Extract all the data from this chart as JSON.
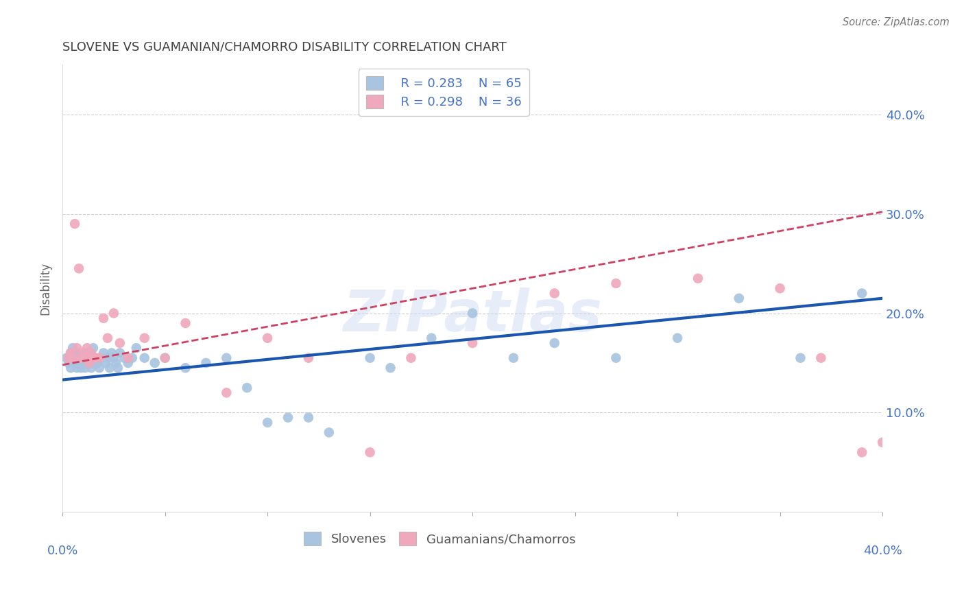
{
  "title": "SLOVENE VS GUAMANIAN/CHAMORRO DISABILITY CORRELATION CHART",
  "source": "Source: ZipAtlas.com",
  "ylabel": "Disability",
  "xlim": [
    0.0,
    0.4
  ],
  "ylim": [
    0.0,
    0.45
  ],
  "ytick_values": [
    0.0,
    0.1,
    0.2,
    0.3,
    0.4
  ],
  "legend_r_slovene": "R = 0.283",
  "legend_n_slovene": "N = 65",
  "legend_r_guam": "R = 0.298",
  "legend_n_guam": "N = 36",
  "slovene_color": "#a8c4e0",
  "guam_color": "#f0a8bc",
  "trend_slovene_color": "#1a56b0",
  "trend_guam_color": "#d04060",
  "background_color": "#ffffff",
  "grid_color": "#cccccc",
  "title_color": "#404040",
  "axis_label_color": "#4472c4",
  "watermark": "ZIPatlas",
  "slovene_x": [
    0.002,
    0.003,
    0.004,
    0.004,
    0.005,
    0.005,
    0.006,
    0.006,
    0.007,
    0.007,
    0.008,
    0.008,
    0.009,
    0.009,
    0.01,
    0.01,
    0.011,
    0.011,
    0.012,
    0.012,
    0.013,
    0.013,
    0.014,
    0.014,
    0.015,
    0.015,
    0.016,
    0.017,
    0.018,
    0.019,
    0.02,
    0.021,
    0.022,
    0.023,
    0.024,
    0.025,
    0.026,
    0.027,
    0.028,
    0.03,
    0.032,
    0.034,
    0.036,
    0.04,
    0.045,
    0.05,
    0.06,
    0.07,
    0.08,
    0.09,
    0.1,
    0.11,
    0.12,
    0.13,
    0.15,
    0.16,
    0.18,
    0.2,
    0.22,
    0.24,
    0.27,
    0.3,
    0.33,
    0.36,
    0.39
  ],
  "slovene_y": [
    0.155,
    0.15,
    0.16,
    0.145,
    0.155,
    0.165,
    0.15,
    0.16,
    0.145,
    0.155,
    0.16,
    0.15,
    0.155,
    0.145,
    0.16,
    0.15,
    0.155,
    0.145,
    0.16,
    0.15,
    0.155,
    0.16,
    0.145,
    0.155,
    0.15,
    0.165,
    0.155,
    0.15,
    0.145,
    0.155,
    0.16,
    0.15,
    0.155,
    0.145,
    0.16,
    0.155,
    0.15,
    0.145,
    0.16,
    0.155,
    0.15,
    0.155,
    0.165,
    0.155,
    0.15,
    0.155,
    0.145,
    0.15,
    0.155,
    0.125,
    0.09,
    0.095,
    0.095,
    0.08,
    0.155,
    0.145,
    0.175,
    0.2,
    0.155,
    0.17,
    0.155,
    0.175,
    0.215,
    0.155,
    0.22
  ],
  "guam_x": [
    0.003,
    0.004,
    0.005,
    0.006,
    0.007,
    0.008,
    0.009,
    0.01,
    0.011,
    0.012,
    0.013,
    0.014,
    0.015,
    0.016,
    0.018,
    0.02,
    0.022,
    0.025,
    0.028,
    0.032,
    0.04,
    0.05,
    0.06,
    0.08,
    0.1,
    0.12,
    0.15,
    0.17,
    0.2,
    0.24,
    0.27,
    0.31,
    0.35,
    0.37,
    0.39,
    0.4
  ],
  "guam_y": [
    0.155,
    0.16,
    0.155,
    0.29,
    0.165,
    0.245,
    0.155,
    0.16,
    0.155,
    0.165,
    0.15,
    0.16,
    0.155,
    0.155,
    0.155,
    0.195,
    0.175,
    0.2,
    0.17,
    0.155,
    0.175,
    0.155,
    0.19,
    0.12,
    0.175,
    0.155,
    0.06,
    0.155,
    0.17,
    0.22,
    0.23,
    0.235,
    0.225,
    0.155,
    0.06,
    0.07
  ],
  "trend_slovene_start_y": 0.133,
  "trend_slovene_end_y": 0.215,
  "trend_guam_start_y": 0.148,
  "trend_guam_end_y": 0.302
}
